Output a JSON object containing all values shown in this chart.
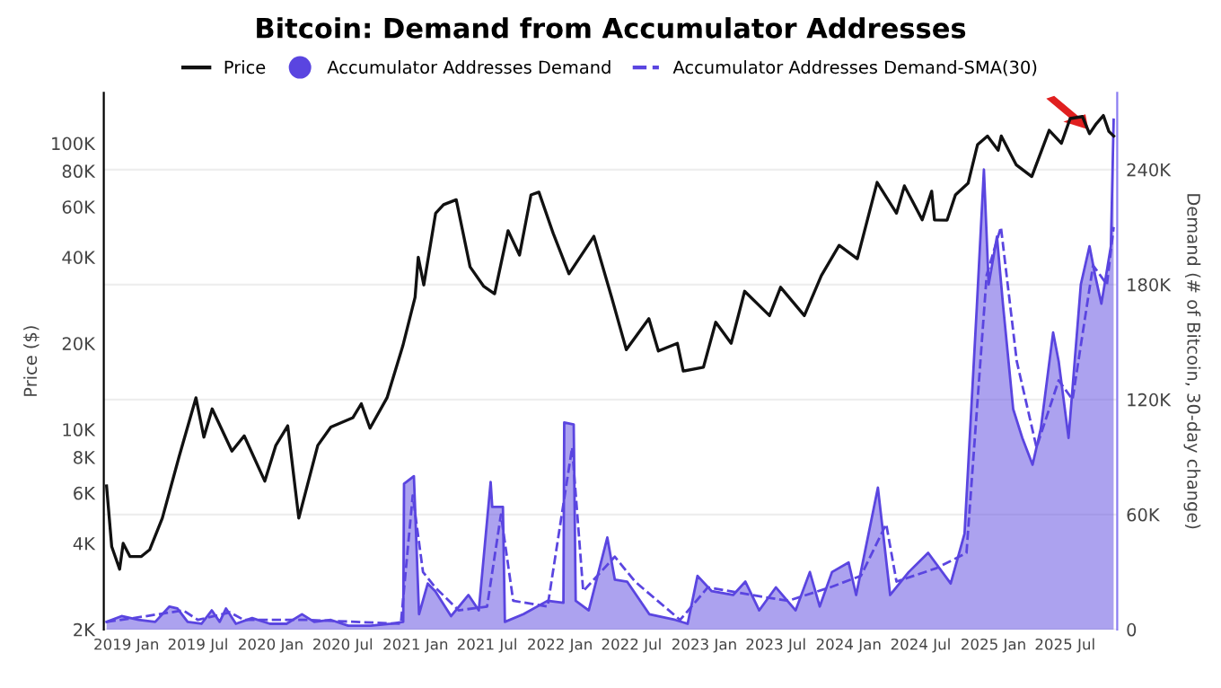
{
  "chart_data": {
    "type": "line",
    "title": "Bitcoin: Demand from Accumulator Addresses",
    "ylabel": "Price ($)",
    "y2label": "Demand (# of Bitcoin, 30-day change)",
    "log": "y",
    "legend": "top",
    "grid": "y2",
    "xlim": [
      "2018-11-05",
      "2025-11-10"
    ],
    "xticks": [
      {
        "value": "2019-01-01",
        "label": "2019 Jan"
      },
      {
        "value": "2019-07-01",
        "label": "2019 Jul"
      },
      {
        "value": "2020-01-01",
        "label": "2020 Jan"
      },
      {
        "value": "2020-07-01",
        "label": "2020 Jul"
      },
      {
        "value": "2021-01-01",
        "label": "2021 Jan"
      },
      {
        "value": "2021-07-01",
        "label": "2021 Jul"
      },
      {
        "value": "2022-01-01",
        "label": "2022 Jan"
      },
      {
        "value": "2022-07-01",
        "label": "2022 Jul"
      },
      {
        "value": "2023-01-01",
        "label": "2023 Jan"
      },
      {
        "value": "2023-07-01",
        "label": "2023 Jul"
      },
      {
        "value": "2024-01-01",
        "label": "2024 Jan"
      },
      {
        "value": "2024-07-01",
        "label": "2024 Jul"
      },
      {
        "value": "2025-01-01",
        "label": "2025 Jan"
      },
      {
        "value": "2025-07-01",
        "label": "2025 Jul"
      }
    ],
    "ylim": [
      2000,
      150000
    ],
    "yticks": [
      {
        "value": 2000,
        "label": "2K"
      },
      {
        "value": 4000,
        "label": "4K"
      },
      {
        "value": 6000,
        "label": "6K"
      },
      {
        "value": 8000,
        "label": "8K"
      },
      {
        "value": 10000,
        "label": "10K"
      },
      {
        "value": 20000,
        "label": "20K"
      },
      {
        "value": 40000,
        "label": "40K"
      },
      {
        "value": 60000,
        "label": "60K"
      },
      {
        "value": 80000,
        "label": "80K"
      },
      {
        "value": 100000,
        "label": "100K"
      }
    ],
    "y2lim": [
      0,
      280000
    ],
    "y2ticks": [
      0,
      {
        "value": 60000,
        "label": "60K"
      },
      {
        "value": 120000,
        "label": "120K"
      },
      {
        "value": 180000,
        "label": "180K"
      },
      {
        "value": 240000,
        "label": "240K"
      }
    ],
    "series": [
      {
        "name": "Accumulator Addresses Demand",
        "type": "area",
        "axis": "y2",
        "color": "#5a45e0",
        "x": [
          "2018-11-12",
          "2018-12-20",
          "2019-02-01",
          "2019-03-15",
          "2019-04-20",
          "2019-05-10",
          "2019-06-05",
          "2019-07-10",
          "2019-08-05",
          "2019-08-25",
          "2019-09-10",
          "2019-10-05",
          "2019-11-15",
          "2019-12-30",
          "2020-02-10",
          "2020-03-20",
          "2020-04-20",
          "2020-06-01",
          "2020-07-15",
          "2020-09-10",
          "2020-11-01",
          "2020-12-01",
          "2020-12-03",
          "2020-12-28",
          "2021-01-10",
          "2021-02-01",
          "2021-02-20",
          "2021-04-01",
          "2021-05-15",
          "2021-06-10",
          "2021-07-10",
          "2021-07-14",
          "2021-08-10",
          "2021-08-15",
          "2021-10-01",
          "2021-12-01",
          "2022-01-10",
          "2022-01-12",
          "2022-02-05",
          "2022-02-10",
          "2022-03-15",
          "2022-05-01",
          "2022-05-20",
          "2022-06-20",
          "2022-08-15",
          "2022-10-20",
          "2022-11-20",
          "2022-12-15",
          "2023-01-20",
          "2023-03-15",
          "2023-04-15",
          "2023-05-20",
          "2023-07-01",
          "2023-08-20",
          "2023-09-25",
          "2023-10-20",
          "2023-11-20",
          "2024-01-01",
          "2024-01-20",
          "2024-03-15",
          "2024-04-15",
          "2024-06-01",
          "2024-07-20",
          "2024-09-15",
          "2024-10-20",
          "2024-11-20",
          "2024-12-08",
          "2024-12-20",
          "2025-01-10",
          "2025-01-25",
          "2025-02-20",
          "2025-03-15",
          "2025-04-10",
          "2025-05-01",
          "2025-06-01",
          "2025-06-15",
          "2025-07-10",
          "2025-08-10",
          "2025-09-01",
          "2025-09-15",
          "2025-10-01",
          "2025-10-25",
          "2025-11-01"
        ],
        "values": [
          4000,
          7000,
          5000,
          4000,
          12000,
          11000,
          4000,
          3000,
          10000,
          4000,
          11000,
          3000,
          6000,
          3000,
          3000,
          8000,
          4000,
          5000,
          2000,
          2000,
          3000,
          4000,
          76000,
          80000,
          8000,
          24000,
          20000,
          7000,
          18000,
          10000,
          77000,
          64000,
          64000,
          4000,
          8000,
          15000,
          14000,
          108000,
          107000,
          15000,
          10000,
          48000,
          26000,
          25000,
          8000,
          5000,
          3000,
          28000,
          20000,
          18000,
          25000,
          10000,
          22000,
          10000,
          30000,
          12000,
          30000,
          35000,
          18000,
          74000,
          18000,
          30000,
          40000,
          24000,
          50000,
          168000,
          240000,
          180000,
          205000,
          170000,
          115000,
          100000,
          86000,
          105000,
          155000,
          140000,
          100000,
          180000,
          200000,
          185000,
          170000,
          200000,
          266000
        ]
      },
      {
        "name": "Accumulator Addresses Demand-SMA(30)",
        "type": "line",
        "axis": "y2",
        "color": "#5a45e0",
        "line_style": "dashed",
        "x": [
          "2018-11-12",
          "2019-01-20",
          "2019-05-25",
          "2019-07-01",
          "2019-09-20",
          "2019-10-25",
          "2020-04-05",
          "2020-11-25",
          "2020-12-25",
          "2021-01-20",
          "2021-02-20",
          "2021-04-20",
          "2021-07-01",
          "2021-08-05",
          "2021-09-05",
          "2021-12-01",
          "2022-02-01",
          "2022-03-01",
          "2022-05-20",
          "2022-07-10",
          "2022-11-01",
          "2023-01-10",
          "2023-05-01",
          "2023-08-01",
          "2023-11-15",
          "2024-02-01",
          "2024-04-05",
          "2024-05-01",
          "2024-08-10",
          "2024-10-25",
          "2024-12-15",
          "2025-01-20",
          "2025-03-01",
          "2025-04-20",
          "2025-06-15",
          "2025-07-20",
          "2025-09-10",
          "2025-10-15",
          "2025-11-01"
        ],
        "values": [
          4000,
          6000,
          10000,
          5000,
          9000,
          5000,
          5000,
          3000,
          70000,
          30000,
          22000,
          10000,
          12000,
          60000,
          15000,
          12000,
          95000,
          20000,
          38000,
          25000,
          5000,
          22000,
          18000,
          15000,
          22000,
          28000,
          55000,
          25000,
          32000,
          40000,
          185000,
          210000,
          140000,
          95000,
          130000,
          120000,
          190000,
          180000,
          210000
        ]
      },
      {
        "name": "Price",
        "axis": "y",
        "color": "#111111",
        "x": [
          "2018-11-12",
          "2018-11-25",
          "2018-12-15",
          "2018-12-24",
          "2019-01-10",
          "2019-02-08",
          "2019-03-01",
          "2019-04-02",
          "2019-05-14",
          "2019-06-26",
          "2019-07-16",
          "2019-08-06",
          "2019-09-25",
          "2019-10-26",
          "2019-12-17",
          "2020-01-14",
          "2020-02-13",
          "2020-03-12",
          "2020-04-29",
          "2020-06-01",
          "2020-07-27",
          "2020-08-17",
          "2020-09-08",
          "2020-10-21",
          "2020-11-30",
          "2020-12-31",
          "2021-01-08",
          "2021-01-22",
          "2021-02-21",
          "2021-03-13",
          "2021-04-14",
          "2021-05-19",
          "2021-06-22",
          "2021-07-20",
          "2021-08-23",
          "2021-09-21",
          "2021-10-20",
          "2021-11-09",
          "2021-12-15",
          "2022-01-24",
          "2022-03-28",
          "2022-05-12",
          "2022-06-18",
          "2022-08-14",
          "2022-09-07",
          "2022-10-25",
          "2022-11-09",
          "2022-12-30",
          "2023-01-30",
          "2023-03-10",
          "2023-04-13",
          "2023-06-15",
          "2023-07-13",
          "2023-09-11",
          "2023-10-24",
          "2023-12-08",
          "2024-01-23",
          "2024-03-13",
          "2024-05-01",
          "2024-05-21",
          "2024-07-05",
          "2024-07-29",
          "2024-08-05",
          "2024-09-06",
          "2024-09-27",
          "2024-10-29",
          "2024-11-22",
          "2024-12-17",
          "2025-01-13",
          "2025-01-21",
          "2025-02-28",
          "2025-04-08",
          "2025-05-22",
          "2025-06-22",
          "2025-07-14",
          "2025-08-14",
          "2025-09-01",
          "2025-09-18",
          "2025-10-06",
          "2025-10-20",
          "2025-11-01"
        ],
        "values": [
          6350,
          3900,
          3250,
          4000,
          3600,
          3600,
          3800,
          4900,
          8000,
          12900,
          9400,
          11800,
          8400,
          9500,
          6600,
          8800,
          10300,
          4900,
          8800,
          10200,
          11000,
          12300,
          10100,
          12900,
          19600,
          29000,
          40000,
          32000,
          57000,
          61000,
          63500,
          37000,
          31700,
          29800,
          49500,
          40700,
          66000,
          67500,
          48500,
          35000,
          47300,
          28900,
          19000,
          24400,
          18800,
          20000,
          16000,
          16500,
          23700,
          20000,
          30400,
          25000,
          31400,
          25000,
          34500,
          44000,
          39500,
          73000,
          57000,
          71000,
          54000,
          68000,
          54000,
          53900,
          66000,
          72500,
          99000,
          106000,
          94500,
          106000,
          84000,
          76500,
          111000,
          100000,
          122000,
          124000,
          108000,
          117000,
          125000,
          110000,
          106000
        ]
      }
    ]
  }
}
